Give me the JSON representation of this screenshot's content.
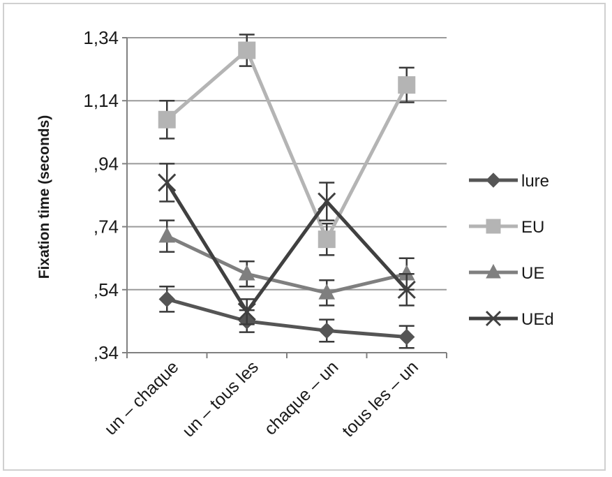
{
  "chart_data": {
    "type": "line",
    "title": "",
    "xlabel": "",
    "ylabel": "Fixation time (seconds)",
    "categories": [
      "un – chaque",
      "un – tous les",
      "chaque – un",
      "tous les – un"
    ],
    "ylim": [
      0.34,
      1.34
    ],
    "yticks": [
      0.34,
      0.54,
      0.74,
      0.94,
      1.14,
      1.34
    ],
    "ytick_labels": [
      ",34",
      ",54",
      ",74",
      ",94",
      "1,14",
      "1,34"
    ],
    "grid": true,
    "legend_position": "right",
    "series": [
      {
        "name": "lure",
        "marker": "diamond",
        "color": "#555555",
        "values": [
          0.51,
          0.44,
          0.41,
          0.39
        ],
        "errors": [
          0.04,
          0.035,
          0.035,
          0.035
        ]
      },
      {
        "name": "EU",
        "marker": "square",
        "color": "#b4b4b4",
        "values": [
          1.08,
          1.3,
          0.7,
          1.19
        ],
        "errors": [
          0.06,
          0.05,
          0.05,
          0.055
        ]
      },
      {
        "name": "UE",
        "marker": "triangle",
        "color": "#7f7f7f",
        "values": [
          0.71,
          0.59,
          0.53,
          0.59
        ],
        "errors": [
          0.05,
          0.04,
          0.04,
          0.05
        ]
      },
      {
        "name": "UEd",
        "marker": "x",
        "color": "#404040",
        "values": [
          0.88,
          0.47,
          0.82,
          0.54
        ],
        "errors": [
          0.06,
          0.04,
          0.06,
          0.05
        ]
      }
    ]
  }
}
